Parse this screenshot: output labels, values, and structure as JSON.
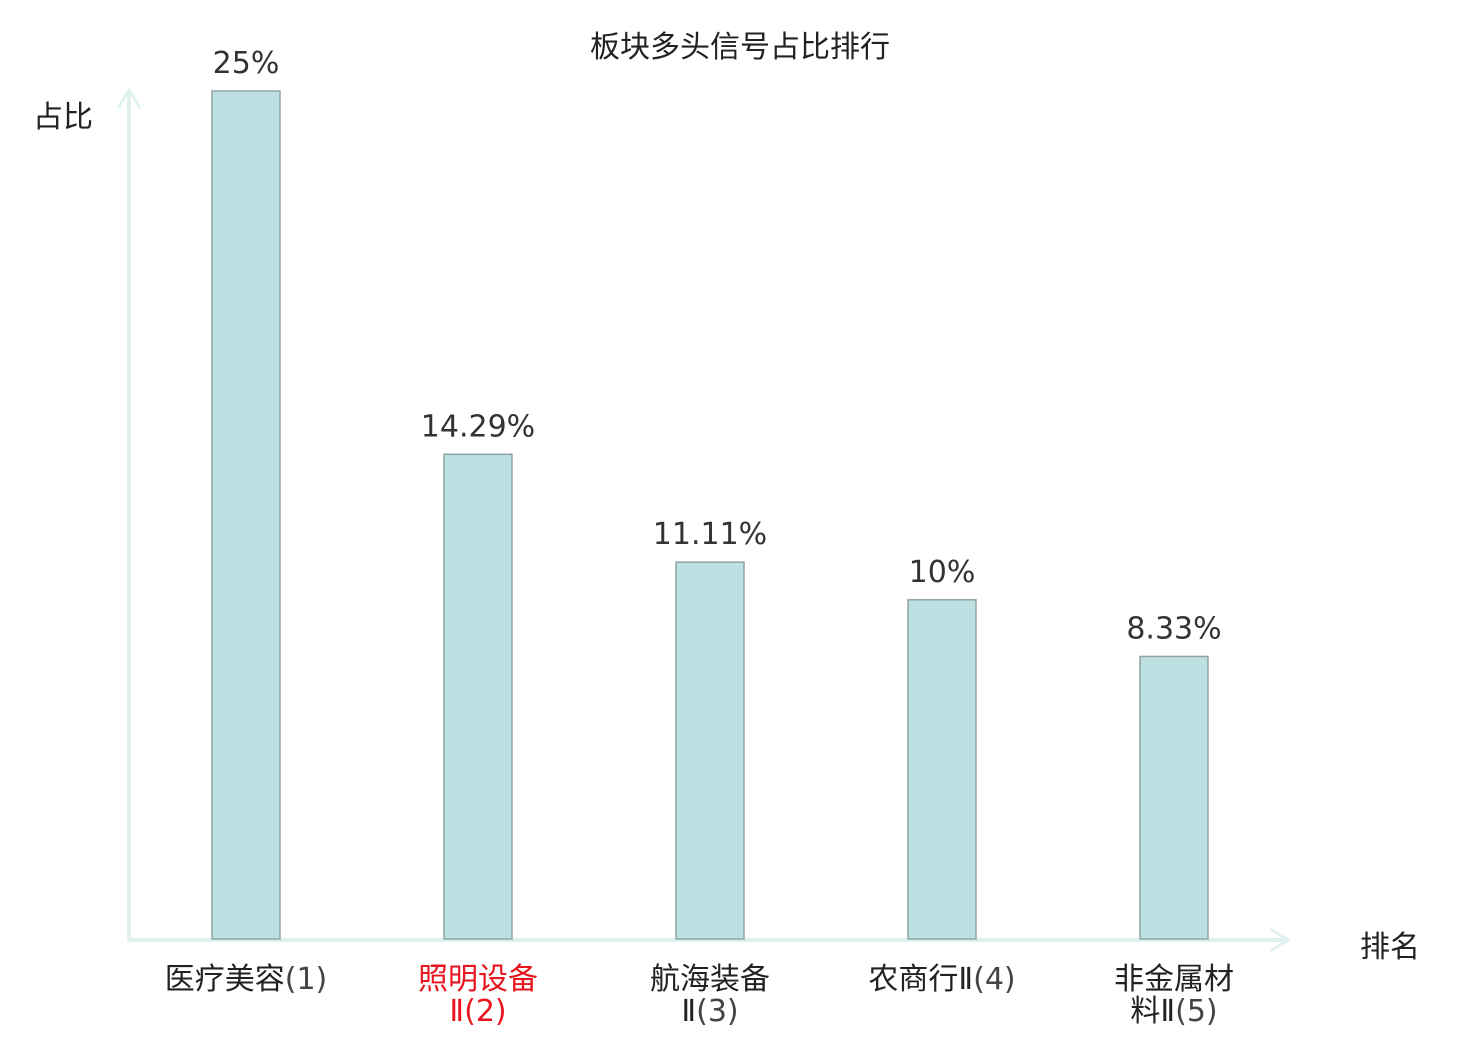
{
  "chart_data": {
    "type": "bar",
    "title": "板块多头信号占比排行",
    "ylabel": "占比",
    "xlabel": "排名",
    "categories": [
      {
        "name_line1": "医疗美容",
        "name_line2": "",
        "rank": "(1)",
        "highlight": false
      },
      {
        "name_line1": "照明设备",
        "name_line2": "Ⅱ",
        "rank": "(2)",
        "highlight": true
      },
      {
        "name_line1": "航海装备",
        "name_line2": "Ⅱ",
        "rank": "(3)",
        "highlight": false
      },
      {
        "name_line1": "农商行Ⅱ",
        "name_line2": "",
        "rank": "(4)",
        "highlight": false
      },
      {
        "name_line1": "非金属材",
        "name_line2": "料Ⅱ",
        "rank": "(5)",
        "highlight": false
      }
    ],
    "values": [
      25,
      14.29,
      11.11,
      10,
      8.33
    ],
    "value_labels": [
      "25%",
      "14.29%",
      "11.11%",
      "10%",
      "8.33%"
    ],
    "ylim": [
      0,
      25
    ],
    "grid": false,
    "colors": {
      "bar_fill": "#bde0e2",
      "bar_stroke": "#8fa3a5",
      "axis": "#e0f2ef",
      "highlight_text": "#e8141e",
      "text": "#222222"
    }
  }
}
